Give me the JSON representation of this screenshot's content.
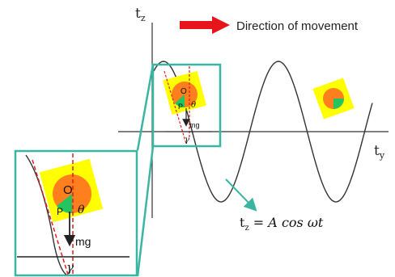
{
  "axes": {
    "vertical_label": "t",
    "vertical_sub": "z",
    "horizontal_label": "t",
    "horizontal_sub": "y"
  },
  "legend": {
    "direction_label": "Direction of movement",
    "arrow_color": "#e8141c"
  },
  "labels": {
    "point_o": "O",
    "point_p": "P",
    "theta": "θ",
    "gravity": "mg",
    "gamma": "γ"
  },
  "equation": {
    "lhs_main": "t",
    "lhs_sub": "z",
    "rhs": " = A cos ωt"
  },
  "colors": {
    "frame": "#3bb5a3",
    "yellow_square": "#ffff00",
    "orange_wheel": "#ff7f1e",
    "green_sector": "#22c55e",
    "dashed_red": "#e11d1d",
    "curve": "#333333"
  }
}
